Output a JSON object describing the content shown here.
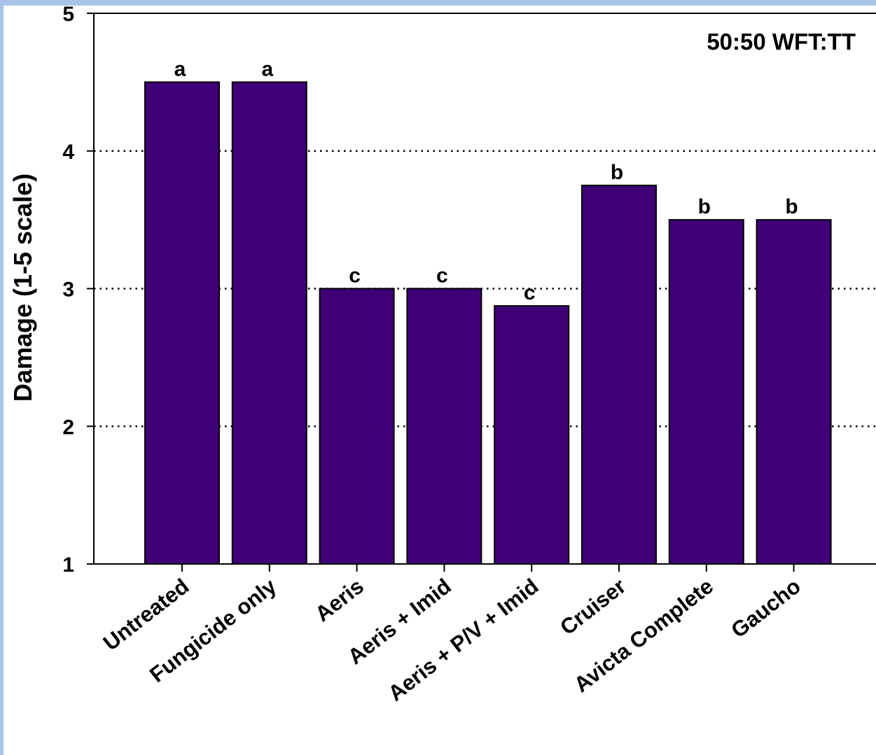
{
  "chart_data": {
    "type": "bar",
    "categories": [
      "Untreated",
      "Fungicide only",
      "Aeris",
      "Aeris + Imid",
      "Aeris + P/V + Imid",
      "Cruiser",
      "Avicta Complete",
      "Gaucho"
    ],
    "values": [
      4.5,
      4.5,
      3.0,
      3.0,
      2.875,
      3.75,
      3.5,
      3.5
    ],
    "letters": [
      "a",
      "a",
      "c",
      "c",
      "c",
      "b",
      "b",
      "b"
    ],
    "ylabel": "Damage (1-5 scale)",
    "xlabel": "",
    "annotation": "50:50 WFT:TT",
    "ylim": [
      1,
      5
    ],
    "yticks": [
      "1",
      "2",
      "3",
      "4",
      "5"
    ],
    "grid": "horizontal dotted at 2, 3, 4",
    "bar_color": "#3f0077"
  }
}
